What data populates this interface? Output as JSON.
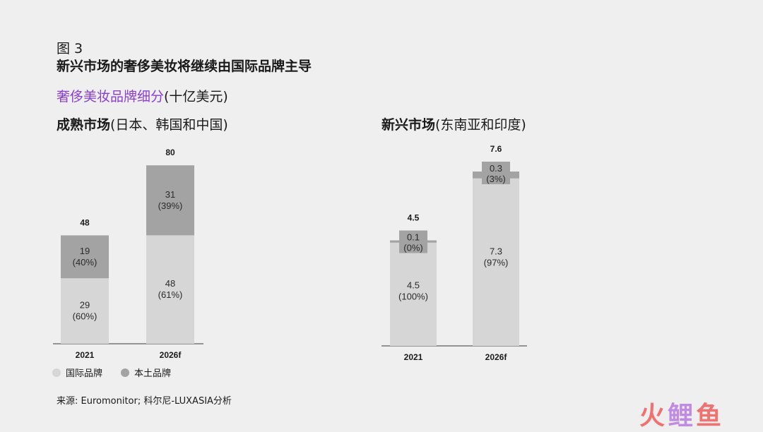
{
  "header": {
    "figure_label": "图 3",
    "title": "新兴市场的奢侈美妆将继续由国际品牌主导",
    "subtitle": "奢侈美妆品牌细分",
    "subtitle_unit": "(十亿美元)"
  },
  "colors": {
    "international": "#d6d6d6",
    "local": "#a3a3a3",
    "subtitle": "#8a3fd1",
    "axis": "#777777"
  },
  "chart_data": [
    {
      "type": "bar",
      "stacked": true,
      "title_bold": "成熟市场",
      "title_rest": "(日本、韩国和中国)",
      "categories": [
        "2021",
        "2026f"
      ],
      "totals": [
        "48",
        "80"
      ],
      "ylim": [
        0,
        80
      ],
      "series": [
        {
          "name": "国际品牌",
          "values": [
            29,
            48
          ],
          "labels": [
            "29",
            "48"
          ],
          "shares": [
            "(60%)",
            "(61%)"
          ]
        },
        {
          "name": "本土品牌",
          "values": [
            19,
            31
          ],
          "labels": [
            "19",
            "31"
          ],
          "shares": [
            "(40%)",
            "(39%)"
          ]
        }
      ]
    },
    {
      "type": "bar",
      "stacked": true,
      "title_bold": "新兴市场",
      "title_rest": "(东南亚和印度)",
      "categories": [
        "2021",
        "2026f"
      ],
      "totals": [
        "4.5",
        "7.6"
      ],
      "ylim": [
        0,
        7.6
      ],
      "series": [
        {
          "name": "国际品牌",
          "values": [
            4.5,
            7.3
          ],
          "labels": [
            "4.5",
            "7.3"
          ],
          "shares": [
            "(100%)",
            "(97%)"
          ]
        },
        {
          "name": "本土品牌",
          "values": [
            0.1,
            0.3
          ],
          "labels": [
            "0.1",
            "0.3"
          ],
          "shares": [
            "(0%)",
            "(3%)"
          ]
        }
      ]
    }
  ],
  "legend": [
    {
      "label": "国际品牌",
      "color": "#d6d6d6"
    },
    {
      "label": "本土品牌",
      "color": "#a3a3a3"
    }
  ],
  "source": "来源: Euromonitor; 科尔尼-LUXASIA分析",
  "watermark": {
    "part1": "火",
    "part2": "鲤",
    "part3": "鱼"
  }
}
